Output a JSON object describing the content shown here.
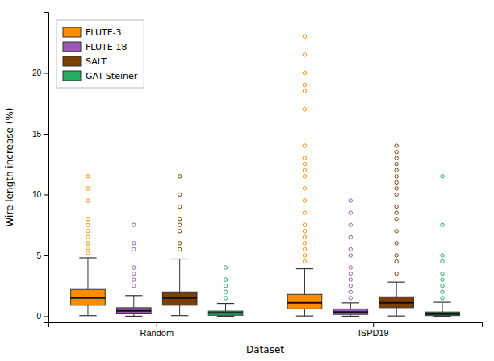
{
  "chart_data": {
    "type": "box",
    "xlabel": "Dataset",
    "ylabel": "Wire length increase (%)",
    "categories": [
      "Random",
      "ISPD19"
    ],
    "ylim": [
      -0.5,
      25
    ],
    "yticks": [
      0,
      5,
      10,
      15,
      20
    ],
    "grid": false,
    "legend": "upper left",
    "series": [
      {
        "name": "FLUTE-3",
        "color": "#FF8C00",
        "stats": [
          {
            "median": 1.5,
            "q1": 0.9,
            "q3": 2.2,
            "low": 0.05,
            "high": 4.8,
            "outliers": [
              5.2,
              5.6,
              6.0,
              6.5,
              7.0,
              7.5,
              8.0,
              9.5,
              10.5,
              11.5
            ]
          },
          {
            "median": 1.1,
            "q1": 0.6,
            "q3": 1.8,
            "low": 0.02,
            "high": 3.9,
            "outliers": [
              4.5,
              5.0,
              5.5,
              6.0,
              6.5,
              7.0,
              7.5,
              8.5,
              9.5,
              10.5,
              11.5,
              12.0,
              12.5,
              13.0,
              14.0,
              17.0,
              18.5,
              19.0,
              20.0,
              21.5,
              23.0
            ]
          }
        ]
      },
      {
        "name": "FLUTE-18",
        "color": "#9B59B6",
        "stats": [
          {
            "median": 0.45,
            "q1": 0.2,
            "q3": 0.7,
            "low": 0.0,
            "high": 1.7,
            "outliers": [
              2.5,
              3.0,
              3.5,
              4.0,
              5.5,
              6.0,
              7.5
            ]
          },
          {
            "median": 0.35,
            "q1": 0.15,
            "q3": 0.6,
            "low": 0.0,
            "high": 1.1,
            "outliers": [
              1.5,
              2.0,
              2.5,
              3.0,
              3.5,
              4.0,
              5.0,
              5.5,
              6.5,
              7.5,
              8.5,
              9.5
            ]
          }
        ]
      },
      {
        "name": "SALT",
        "color": "#7B3F00",
        "stats": [
          {
            "median": 1.5,
            "q1": 0.9,
            "q3": 2.0,
            "low": 0.05,
            "high": 4.7,
            "outliers": [
              5.5,
              6.0,
              7.0,
              7.5,
              8.0,
              9.0,
              10.0,
              11.5
            ]
          },
          {
            "median": 1.1,
            "q1": 0.7,
            "q3": 1.6,
            "low": 0.02,
            "high": 2.8,
            "outliers": [
              3.5,
              4.5,
              5.0,
              6.0,
              7.0,
              8.0,
              8.5,
              9.0,
              10.0,
              10.5,
              11.0,
              11.5,
              12.0,
              12.5,
              13.0,
              13.5,
              14.0
            ]
          }
        ]
      },
      {
        "name": "GAT-Steiner",
        "color": "#27AE60",
        "stats": [
          {
            "median": 0.28,
            "q1": 0.08,
            "q3": 0.42,
            "low": 0.0,
            "high": 1.05,
            "outliers": [
              1.5,
              2.0,
              2.5,
              3.0,
              4.0
            ]
          },
          {
            "median": 0.18,
            "q1": 0.05,
            "q3": 0.35,
            "low": 0.0,
            "high": 1.15,
            "outliers": [
              1.5,
              2.0,
              2.5,
              3.0,
              3.5,
              4.5,
              5.0,
              7.5,
              11.5
            ]
          }
        ]
      }
    ]
  }
}
